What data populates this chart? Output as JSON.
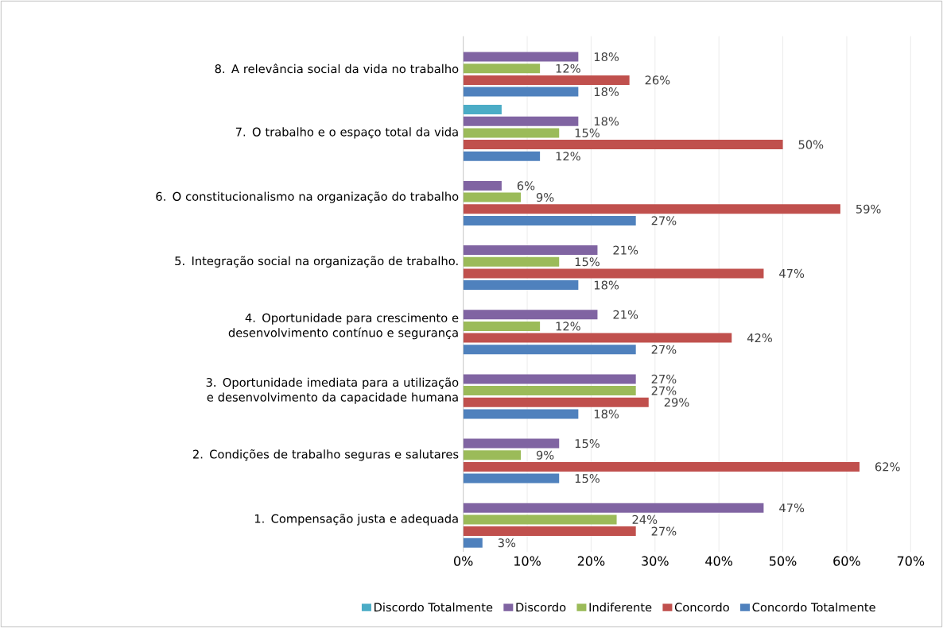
{
  "chart_data": {
    "type": "bar",
    "orientation": "horizontal",
    "categories": [
      "8. A relevância social da vida no trabalho",
      "7. O trabalho e o espaço total da vida",
      "6. O constitucionalismo na organização do trabalho",
      "5. Integração social na organização de trabalho.",
      "4. Oportunidade para crescimento e desenvolvimento contínuo e segurança",
      "3. Oportunidade imediata para a utilização e desenvolvimento da capacidade humana",
      "2. Condições de trabalho seguras e salutares",
      "1. Compensação justa e adequada"
    ],
    "series": [
      {
        "name": "Discordo Totalmente",
        "color": "#4bacc6",
        "values": [
          null,
          6,
          null,
          null,
          null,
          null,
          null,
          null
        ],
        "value_labels": [
          null,
          null,
          null,
          null,
          null,
          null,
          null,
          null
        ]
      },
      {
        "name": "Discordo",
        "color": "#8064a2",
        "values": [
          18,
          18,
          6,
          21,
          21,
          27,
          15,
          47
        ],
        "value_labels": [
          "18%",
          "18%",
          "6%",
          "21%",
          "21%",
          "27%",
          "15%",
          "47%"
        ]
      },
      {
        "name": "Indiferente",
        "color": "#9bbb59",
        "values": [
          12,
          15,
          9,
          15,
          12,
          27,
          9,
          24
        ],
        "value_labels": [
          "12%",
          "15%",
          "9%",
          "15%",
          "12%",
          "27%",
          "9%",
          "24%"
        ]
      },
      {
        "name": "Concordo",
        "color": "#c0504d",
        "values": [
          26,
          50,
          59,
          47,
          42,
          29,
          62,
          27
        ],
        "value_labels": [
          "26%",
          "50%",
          "59%",
          "47%",
          "42%",
          "29%",
          "62%",
          "27%"
        ]
      },
      {
        "name": "Concordo Totalmente",
        "color": "#4f81bd",
        "values": [
          18,
          12,
          27,
          18,
          27,
          18,
          15,
          3
        ],
        "value_labels": [
          "18%",
          "12%",
          "27%",
          "18%",
          "27%",
          "18%",
          "15%",
          "3%"
        ]
      }
    ],
    "xlim": [
      0,
      70
    ],
    "xticks": [
      {
        "value": 0,
        "label": "0%"
      },
      {
        "value": 10,
        "label": "10%"
      },
      {
        "value": 20,
        "label": "20%"
      },
      {
        "value": 30,
        "label": "30%"
      },
      {
        "value": 40,
        "label": "40%"
      },
      {
        "value": 50,
        "label": "50%"
      },
      {
        "value": 60,
        "label": "60%"
      },
      {
        "value": 70,
        "label": "70%"
      }
    ],
    "grid": "x",
    "legend": "bottom"
  }
}
